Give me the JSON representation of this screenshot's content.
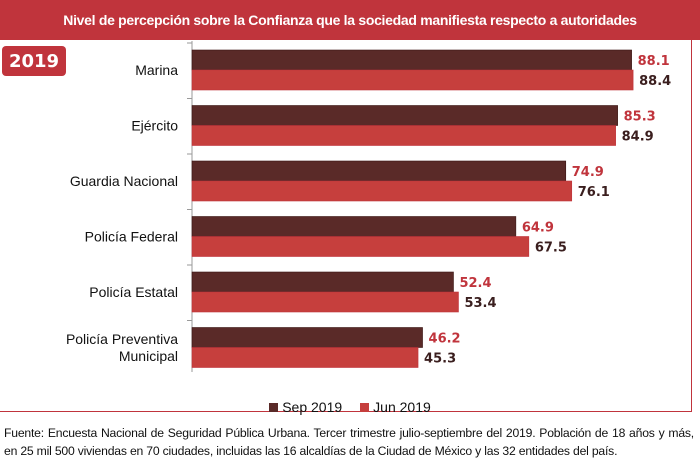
{
  "chart_data": {
    "type": "bar",
    "orientation": "horizontal",
    "title": "Nivel de percepción sobre la Confianza que la sociedad manifiesta respecto a autoridades",
    "badge": "2019",
    "categories": [
      "Marina",
      "Ejército",
      "Guardia Nacional",
      "Policía Federal",
      "Policía Estatal",
      "Policía Preventiva Municipal"
    ],
    "category_lines": [
      [
        "Marina"
      ],
      [
        "Ejército"
      ],
      [
        "Guardia Nacional"
      ],
      [
        "Policía Federal"
      ],
      [
        "Policía Estatal"
      ],
      [
        "Policía Preventiva",
        "Municipal"
      ]
    ],
    "series": [
      {
        "name": "Sep 2019",
        "color": "#5a2a28",
        "label_color": "#c0343c",
        "values": [
          88.1,
          85.3,
          74.9,
          64.9,
          52.4,
          46.2
        ]
      },
      {
        "name": "Jun 2019",
        "color": "#c63f3d",
        "label_color": "#3a1e1e",
        "values": [
          88.4,
          84.9,
          76.1,
          67.5,
          53.4,
          45.3
        ]
      }
    ],
    "xlim": [
      0,
      100
    ],
    "grid": false,
    "legend_position": "bottom"
  },
  "footer": {
    "source": "Fuente: Encuesta Nacional de Seguridad Pública Urbana. Tercer trimestre julio-septiembre del 2019. Población de 18 años y más, en 25 mil 500 viviendas en 70 ciudades, incluidas las 16 alcaldías de la Ciudad de México y las 32 entidades del país."
  }
}
